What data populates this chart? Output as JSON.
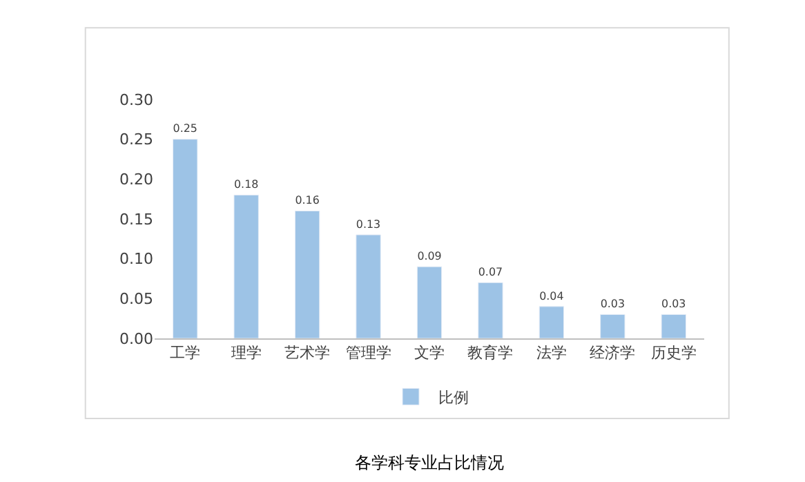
{
  "chart_data": {
    "type": "bar",
    "categories": [
      "工学",
      "理学",
      "艺术学",
      "管理学",
      "文学",
      "教育学",
      "法学",
      "经济学",
      "历史学"
    ],
    "series": [
      {
        "name": "比例",
        "color": "#9dc3e6",
        "values": [
          0.25,
          0.18,
          0.16,
          0.13,
          0.09,
          0.07,
          0.04,
          0.03,
          0.03
        ]
      }
    ],
    "ylim": [
      0,
      0.3
    ],
    "yticks": [
      {
        "value": 0,
        "label": "0.00"
      },
      {
        "value": 0.05,
        "label": "0.05"
      },
      {
        "value": 0.1,
        "label": "0.10"
      },
      {
        "value": 0.15,
        "label": "0.15"
      },
      {
        "value": 0.2,
        "label": "0.20"
      },
      {
        "value": 0.25,
        "label": "0.25"
      },
      {
        "value": 0.3,
        "label": "0.30"
      }
    ],
    "data_labels": true,
    "grid": false,
    "legend": "bottom",
    "annotations": [
      "各学科专业占比情况"
    ]
  }
}
